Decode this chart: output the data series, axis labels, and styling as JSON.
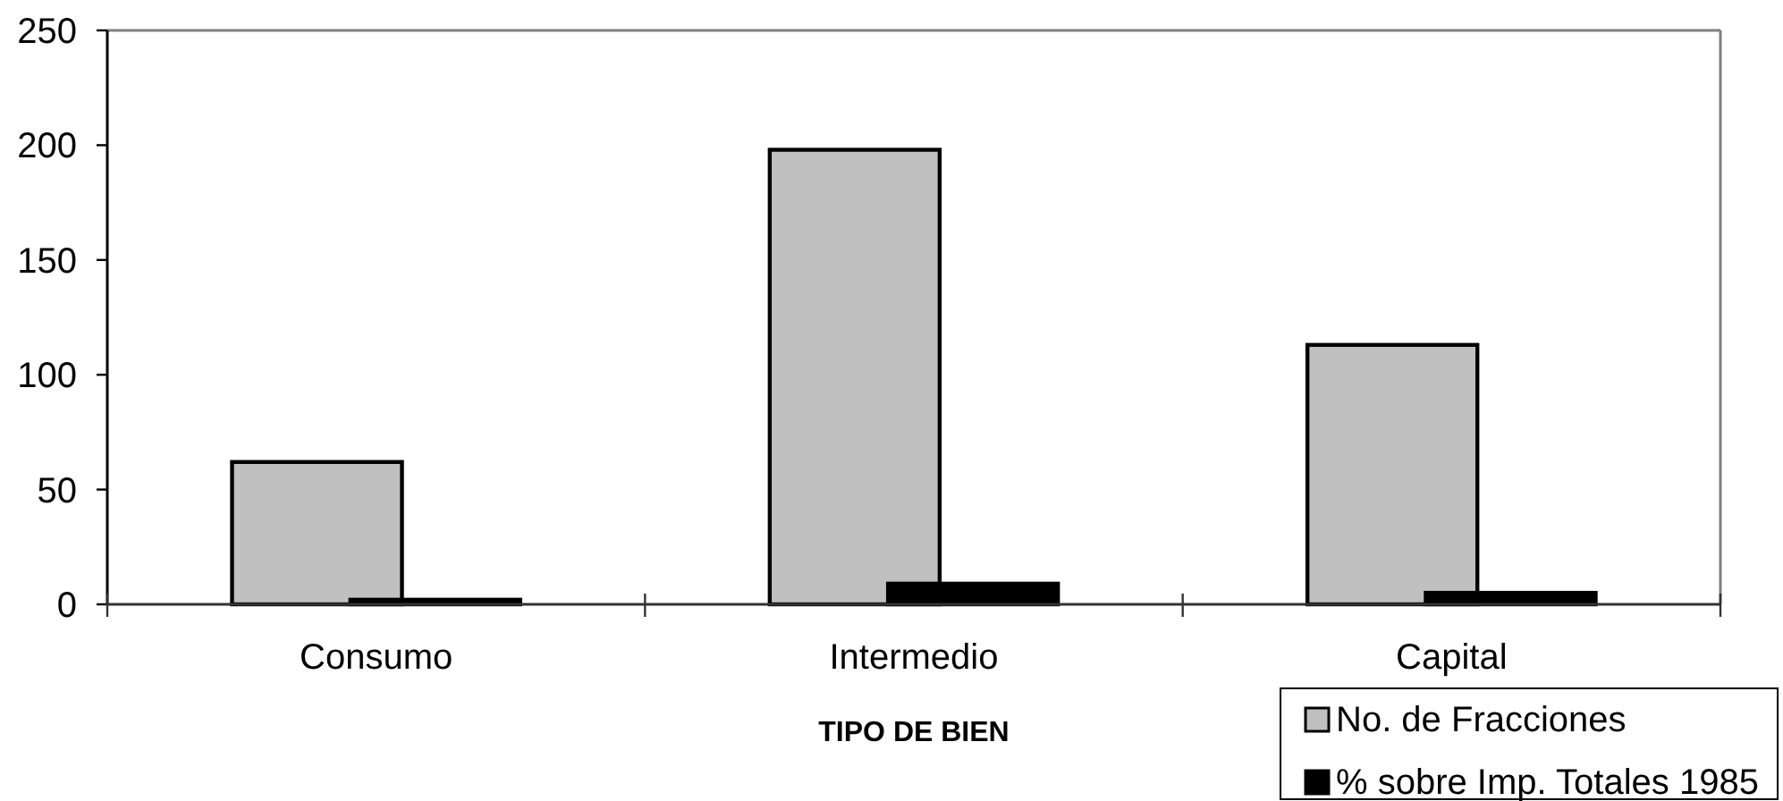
{
  "chart_data": {
    "type": "bar",
    "xlabel": "TIPO DE BIEN",
    "categories": [
      "Consumo",
      "Intermedio",
      "Capital"
    ],
    "series": [
      {
        "name": "No. de Fracciones",
        "color": "#c0c0c0",
        "values": [
          62,
          198,
          113
        ]
      },
      {
        "name": "% sobre Imp. Totales 1985",
        "color": "#000000",
        "values": [
          2,
          9,
          5
        ]
      }
    ],
    "ylim": [
      0,
      250
    ],
    "yticks": [
      0,
      50,
      100,
      150,
      200,
      250
    ],
    "legend": "bottom right"
  }
}
